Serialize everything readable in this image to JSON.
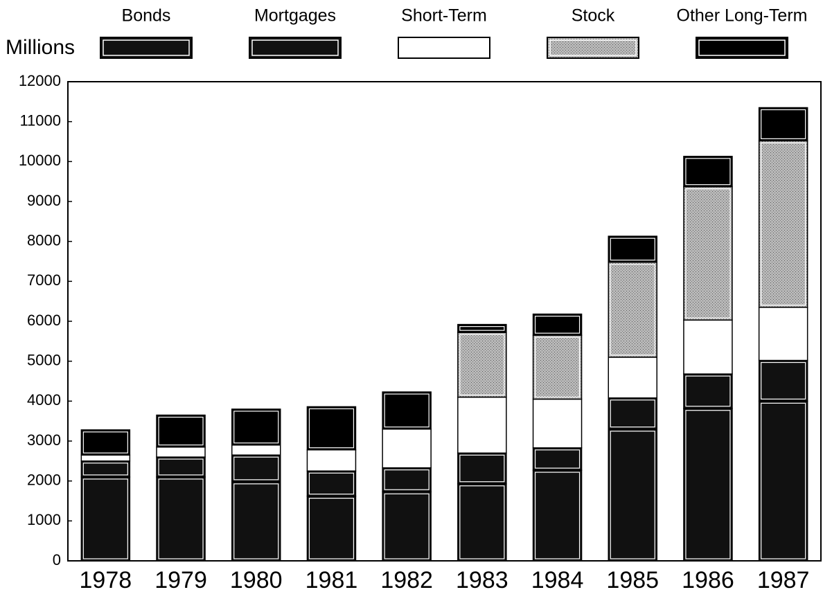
{
  "chart_data": {
    "type": "stacked_bar",
    "ylabel": "Millions",
    "categories": [
      "1978",
      "1979",
      "1980",
      "1981",
      "1982",
      "1983",
      "1984",
      "1985",
      "1986",
      "1987"
    ],
    "series": [
      {
        "name": "Bonds",
        "color": "#111111",
        "values": [
          2100,
          2100,
          1980,
          1620,
          1730,
          1930,
          2270,
          3300,
          3820,
          4000
        ]
      },
      {
        "name": "Mortgages",
        "color": "#111111",
        "values": [
          400,
          500,
          670,
          630,
          600,
          770,
          560,
          780,
          860,
          1020
        ]
      },
      {
        "name": "Short-Term",
        "color": "#ffffff",
        "values": [
          150,
          250,
          250,
          530,
          970,
          1400,
          1220,
          1020,
          1350,
          1330
        ]
      },
      {
        "name": "Stock",
        "color": "#9a9a9a",
        "values": [
          0,
          0,
          0,
          0,
          0,
          1620,
          1600,
          2380,
          3340,
          4170
        ]
      },
      {
        "name": "Other Long-Term",
        "color": "#000000",
        "values": [
          630,
          800,
          900,
          1080,
          930,
          200,
          530,
          650,
          760,
          830
        ]
      }
    ],
    "ylim": [
      0,
      12000
    ],
    "yticks": [
      0,
      1000,
      2000,
      3000,
      4000,
      5000,
      6000,
      7000,
      8000,
      9000,
      10000,
      11000,
      12000
    ]
  }
}
